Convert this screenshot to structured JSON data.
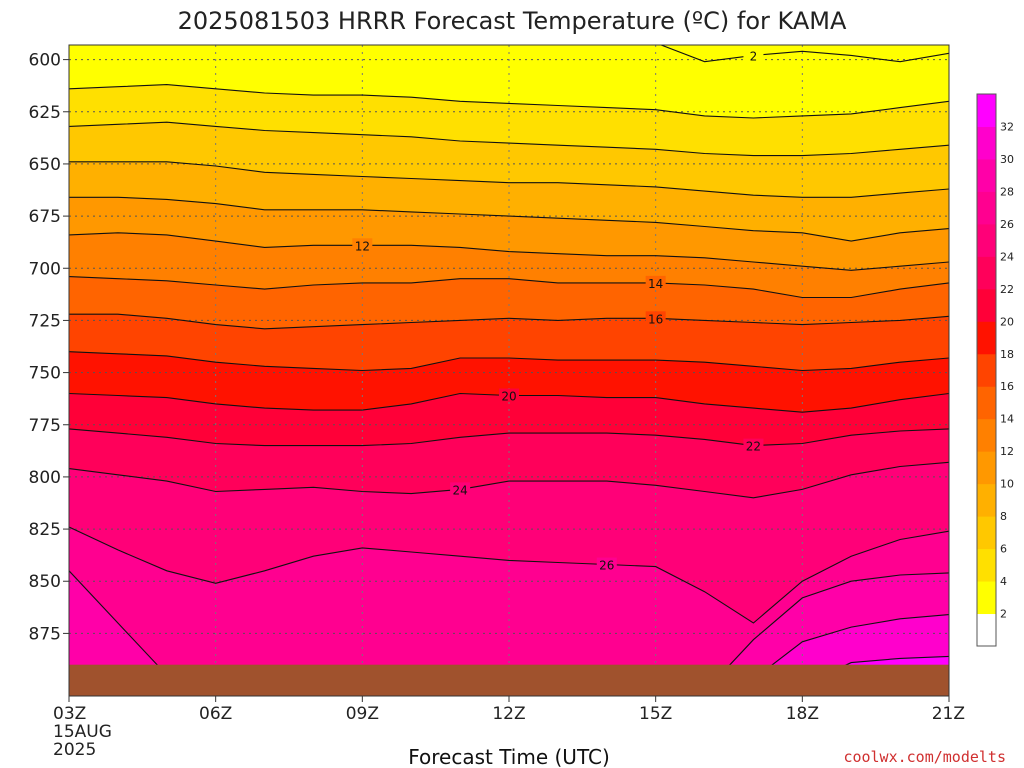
{
  "chart_data": {
    "type": "heatmap",
    "title": "2025081503 HRRR Forecast Temperature (ºC) for KAMA",
    "xlabel": "Forecast Time (UTC)",
    "ylabel": "",
    "credit": "coolwx.com/modelts",
    "x_ticks": [
      {
        "label": "03Z",
        "date_line1": "15AUG",
        "date_line2": "2025"
      },
      {
        "label": "06Z"
      },
      {
        "label": "09Z"
      },
      {
        "label": "12Z"
      },
      {
        "label": "15Z"
      },
      {
        "label": "18Z"
      },
      {
        "label": "21Z"
      }
    ],
    "x_hours": [
      3,
      21
    ],
    "y_ticks": [
      600,
      625,
      650,
      675,
      700,
      725,
      750,
      775,
      800,
      825,
      850,
      875
    ],
    "ylim": [
      593,
      905
    ],
    "y_reversed": true,
    "grid": true,
    "colorbar": {
      "levels": [
        0,
        2,
        4,
        6,
        8,
        10,
        12,
        14,
        16,
        18,
        20,
        22,
        24,
        26,
        28,
        30,
        32,
        34
      ],
      "labels": [
        "2",
        "4",
        "6",
        "8",
        "10",
        "12",
        "14",
        "16",
        "18",
        "20",
        "22",
        "24",
        "26",
        "28",
        "30",
        "32"
      ],
      "colors": [
        "#ffffff",
        "#ffff00",
        "#ffe000",
        "#ffc800",
        "#ffb000",
        "#ff9800",
        "#ff8000",
        "#ff6400",
        "#ff4400",
        "#ff1200",
        "#ff0038",
        "#ff005a",
        "#ff0078",
        "#ff0090",
        "#ff00a8",
        "#ff00cc",
        "#ff00ff"
      ]
    },
    "x": [
      3,
      4,
      5,
      6,
      7,
      8,
      9,
      10,
      11,
      12,
      13,
      14,
      15,
      16,
      17,
      18,
      19,
      20,
      21
    ],
    "isotherms": [
      {
        "level": 2,
        "label": "2",
        "label_at": 17,
        "p": [
          591,
          591,
          591,
          591,
          591,
          591,
          591,
          591,
          591,
          591,
          591,
          591,
          592,
          601,
          598,
          596,
          598,
          601,
          597
        ]
      },
      {
        "level": 4,
        "label": "",
        "p": [
          614,
          613,
          612,
          614,
          616,
          617,
          617,
          618,
          620,
          621,
          622,
          623,
          624,
          627,
          628,
          627,
          626,
          623,
          620
        ]
      },
      {
        "level": 6,
        "label": "",
        "p": [
          632,
          631,
          630,
          632,
          634,
          635,
          636,
          637,
          639,
          640,
          641,
          642,
          643,
          645,
          646,
          646,
          645,
          643,
          641
        ]
      },
      {
        "level": 8,
        "label": "",
        "p": [
          649,
          649,
          649,
          651,
          654,
          655,
          656,
          657,
          658,
          659,
          659,
          660,
          661,
          663,
          665,
          666,
          666,
          664,
          662
        ]
      },
      {
        "level": 10,
        "label": "",
        "p": [
          666,
          666,
          667,
          669,
          672,
          672,
          672,
          673,
          674,
          675,
          676,
          677,
          678,
          680,
          682,
          683,
          687,
          683,
          681
        ]
      },
      {
        "level": 12,
        "label": "12",
        "label_at": 9,
        "p": [
          684,
          683,
          684,
          687,
          690,
          689,
          689,
          689,
          690,
          692,
          693,
          694,
          694,
          695,
          697,
          699,
          701,
          699,
          697
        ]
      },
      {
        "level": 14,
        "label": "14",
        "label_at": 15,
        "p": [
          704,
          705,
          706,
          708,
          710,
          708,
          707,
          707,
          705,
          705,
          707,
          707,
          707,
          708,
          710,
          714,
          714,
          710,
          707
        ]
      },
      {
        "level": 16,
        "label": "16",
        "label_at": 15,
        "p": [
          722,
          722,
          724,
          727,
          729,
          728,
          727,
          726,
          725,
          724,
          725,
          724,
          724,
          725,
          726,
          727,
          726,
          725,
          723
        ]
      },
      {
        "level": 18,
        "label": "",
        "p": [
          740,
          741,
          742,
          745,
          747,
          748,
          749,
          748,
          743,
          743,
          744,
          744,
          744,
          745,
          747,
          749,
          748,
          745,
          743
        ]
      },
      {
        "level": 20,
        "label": "20",
        "label_at": 12,
        "p": [
          760,
          761,
          762,
          765,
          767,
          768,
          768,
          765,
          760,
          761,
          761,
          762,
          762,
          765,
          767,
          769,
          767,
          763,
          760
        ]
      },
      {
        "level": 22,
        "label": "22",
        "label_at": 17,
        "p": [
          777,
          779,
          781,
          784,
          785,
          785,
          785,
          784,
          781,
          779,
          779,
          779,
          780,
          782,
          785,
          784,
          780,
          778,
          777
        ]
      },
      {
        "level": 24,
        "label": "24",
        "label_at": 11,
        "p": [
          796,
          799,
          802,
          807,
          806,
          805,
          807,
          808,
          806,
          802,
          802,
          802,
          804,
          807,
          810,
          806,
          799,
          795,
          793
        ]
      },
      {
        "level": 26,
        "label": "26",
        "label_at": 14,
        "p": [
          824,
          835,
          845,
          851,
          845,
          838,
          834,
          836,
          838,
          840,
          841,
          842,
          843,
          855,
          870,
          850,
          838,
          830,
          826
        ]
      },
      {
        "level": 28,
        "label": "",
        "p": [
          845,
          870,
          895,
          905,
          905,
          905,
          905,
          905,
          905,
          905,
          905,
          905,
          905,
          903,
          878,
          858,
          850,
          847,
          846
        ]
      },
      {
        "level": 30,
        "label": "",
        "p": [
          null,
          null,
          null,
          null,
          null,
          null,
          null,
          null,
          null,
          null,
          null,
          null,
          null,
          null,
          897,
          879,
          872,
          868,
          866
        ]
      },
      {
        "level": 32,
        "label": "",
        "p": [
          null,
          null,
          null,
          null,
          null,
          null,
          null,
          null,
          null,
          null,
          null,
          null,
          null,
          null,
          null,
          900,
          889,
          887,
          886
        ]
      }
    ],
    "fill_levels": [
      4,
      6,
      8,
      10,
      12,
      14,
      16,
      18,
      20,
      22,
      24,
      26,
      28,
      30,
      32
    ],
    "ground": {
      "color": "#a0522d",
      "top_p": 890
    }
  }
}
